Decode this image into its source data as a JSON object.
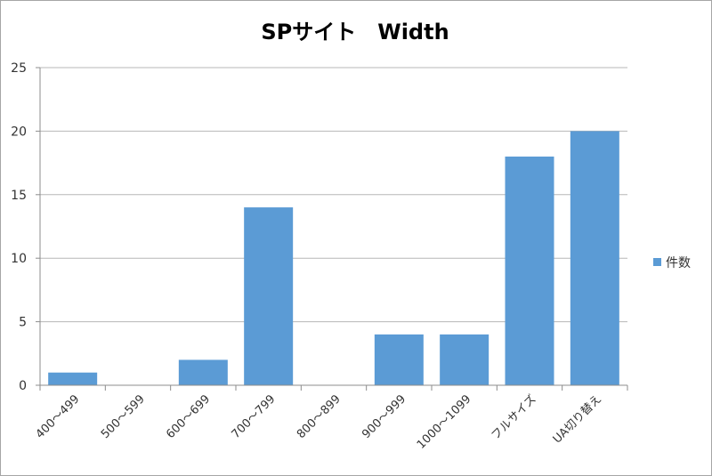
{
  "chart_data": {
    "type": "bar",
    "title": "SPサイト　Width",
    "xlabel": "",
    "ylabel": "",
    "categories": [
      "400～499",
      "500～599",
      "600～699",
      "700～799",
      "800～899",
      "900～999",
      "1000～1099",
      "フルサイズ",
      "UA切り替え"
    ],
    "series": [
      {
        "name": "件数",
        "values": [
          1,
          0,
          2,
          14,
          0,
          4,
          4,
          18,
          20
        ],
        "color": "#5b9bd5"
      }
    ],
    "ylim": [
      0,
      25
    ],
    "yticks": [
      0,
      5,
      10,
      15,
      20,
      25
    ],
    "grid": true,
    "legend_position": "right"
  }
}
